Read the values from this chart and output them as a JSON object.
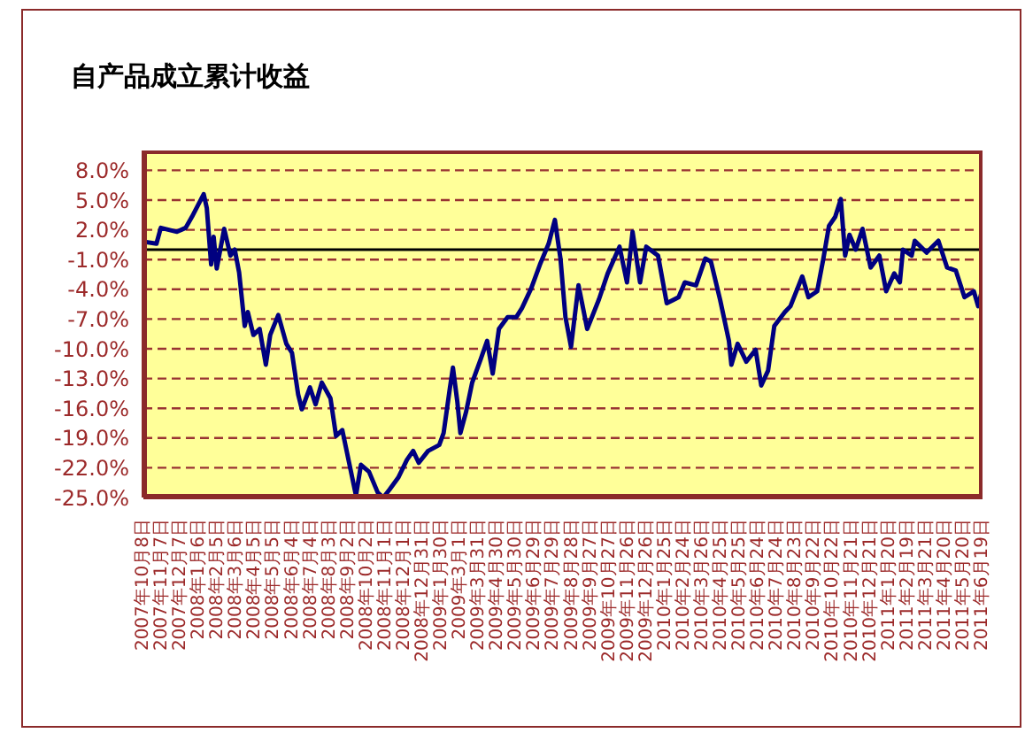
{
  "chart_data": {
    "type": "line",
    "title": "自产品成立累计收益",
    "x": [
      "2007-10-08",
      "2007-10-29",
      "2007-11-05",
      "2007-12-01",
      "2007-12-15",
      "2007-12-25",
      "2008-01-13",
      "2008-01-18",
      "2008-01-25",
      "2008-01-29",
      "2008-02-03",
      "2008-02-15",
      "2008-02-25",
      "2008-03-03",
      "2008-03-10",
      "2008-03-19",
      "2008-03-24",
      "2008-04-02",
      "2008-04-12",
      "2008-04-22",
      "2008-04-29",
      "2008-05-12",
      "2008-05-25",
      "2008-06-03",
      "2008-06-13",
      "2008-06-19",
      "2008-07-02",
      "2008-07-11",
      "2008-07-21",
      "2008-08-04",
      "2008-08-13",
      "2008-08-23",
      "2008-09-02",
      "2008-09-14",
      "2008-09-22",
      "2008-10-05",
      "2008-10-19",
      "2008-10-28",
      "2008-11-07",
      "2008-11-21",
      "2008-12-05",
      "2008-12-15",
      "2008-12-24",
      "2009-01-08",
      "2009-01-26",
      "2009-02-02",
      "2009-02-12",
      "2009-02-17",
      "2009-02-24",
      "2009-03-01",
      "2009-03-10",
      "2009-03-20",
      "2009-04-03",
      "2009-04-13",
      "2009-04-22",
      "2009-05-02",
      "2009-05-16",
      "2009-05-30",
      "2009-06-08",
      "2009-06-23",
      "2009-07-07",
      "2009-07-21",
      "2009-07-31",
      "2009-08-09",
      "2009-08-17",
      "2009-08-26",
      "2009-09-07",
      "2009-09-21",
      "2009-10-10",
      "2009-10-24",
      "2009-11-12",
      "2009-11-24",
      "2009-12-03",
      "2009-12-15",
      "2009-12-25",
      "2010-01-13",
      "2010-01-27",
      "2010-02-15",
      "2010-02-25",
      "2010-03-15",
      "2010-03-30",
      "2010-04-08",
      "2010-04-23",
      "2010-05-07",
      "2010-05-11",
      "2010-05-21",
      "2010-06-04",
      "2010-06-19",
      "2010-06-28",
      "2010-07-09",
      "2010-07-19",
      "2010-08-05",
      "2010-08-14",
      "2010-09-02",
      "2010-09-12",
      "2010-09-26",
      "2010-10-06",
      "2010-10-15",
      "2010-10-25",
      "2010-11-03",
      "2010-11-10",
      "2010-11-17",
      "2010-11-27",
      "2010-12-08",
      "2010-12-21",
      "2011-01-04",
      "2011-01-15",
      "2011-01-28",
      "2011-02-06",
      "2011-02-11",
      "2011-02-25",
      "2011-03-02",
      "2011-03-21",
      "2011-04-09",
      "2011-04-23",
      "2011-05-07",
      "2011-05-21",
      "2011-06-05",
      "2011-06-12",
      "2011-06-19"
    ],
    "series": [
      {
        "color": "#000080",
        "values": [
          0.8,
          0.6,
          2.2,
          1.8,
          2.2,
          3.3,
          5.6,
          4.2,
          -1.5,
          1.3,
          -1.9,
          2.1,
          -0.6,
          0.0,
          -2.3,
          -7.7,
          -6.3,
          -8.6,
          -8.0,
          -11.6,
          -8.6,
          -6.6,
          -9.5,
          -10.4,
          -14.6,
          -16.1,
          -13.9,
          -15.6,
          -13.4,
          -15.0,
          -18.8,
          -18.2,
          -21.2,
          -24.8,
          -21.7,
          -22.4,
          -24.5,
          -25.0,
          -24.2,
          -23.0,
          -21.2,
          -20.3,
          -21.5,
          -20.3,
          -19.7,
          -18.5,
          -14.0,
          -11.9,
          -15.3,
          -18.5,
          -16.4,
          -13.4,
          -11.0,
          -9.2,
          -12.5,
          -8.0,
          -6.8,
          -6.8,
          -5.9,
          -3.9,
          -1.5,
          0.6,
          3.0,
          -0.9,
          -6.8,
          -9.8,
          -3.6,
          -8.0,
          -5.0,
          -2.4,
          0.3,
          -3.3,
          1.8,
          -3.3,
          0.3,
          -0.6,
          -5.4,
          -4.8,
          -3.3,
          -3.6,
          -0.9,
          -1.2,
          -5.1,
          -9.2,
          -11.6,
          -9.5,
          -11.3,
          -10.1,
          -13.7,
          -12.2,
          -7.7,
          -6.3,
          -5.7,
          -2.7,
          -4.8,
          -4.2,
          -0.9,
          2.4,
          3.3,
          5.1,
          -0.6,
          1.5,
          0.0,
          2.1,
          -1.8,
          -0.6,
          -4.2,
          -2.4,
          -3.3,
          0.0,
          -0.6,
          0.9,
          -0.3,
          0.9,
          -1.8,
          -2.1,
          -4.8,
          -4.2,
          -5.7,
          -3.9
        ]
      }
    ],
    "xlim": [
      "2007-10-08",
      "2011-06-19"
    ],
    "xticks": [
      {
        "value": "2007-10-08",
        "label": "2007年10月8日"
      },
      {
        "value": "2007-11-07",
        "label": "2007年11月7日"
      },
      {
        "value": "2007-12-07",
        "label": "2007年12月7日"
      },
      {
        "value": "2008-01-06",
        "label": "2008年1月6日"
      },
      {
        "value": "2008-02-05",
        "label": "2008年2月5日"
      },
      {
        "value": "2008-03-06",
        "label": "2008年3月6日"
      },
      {
        "value": "2008-04-05",
        "label": "2008年4月5日"
      },
      {
        "value": "2008-05-05",
        "label": "2008年5月5日"
      },
      {
        "value": "2008-06-04",
        "label": "2008年6月4日"
      },
      {
        "value": "2008-07-04",
        "label": "2008年7月4日"
      },
      {
        "value": "2008-08-03",
        "label": "2008年8月3日"
      },
      {
        "value": "2008-09-02",
        "label": "2008年9月2日"
      },
      {
        "value": "2008-10-02",
        "label": "2008年10月2日"
      },
      {
        "value": "2008-11-01",
        "label": "2008年11月1日"
      },
      {
        "value": "2008-12-01",
        "label": "2008年12月1日"
      },
      {
        "value": "2008-12-31",
        "label": "2008年12月31日"
      },
      {
        "value": "2009-01-30",
        "label": "2009年1月30日"
      },
      {
        "value": "2009-03-01",
        "label": "2009年3月1日"
      },
      {
        "value": "2009-03-31",
        "label": "2009年3月31日"
      },
      {
        "value": "2009-04-30",
        "label": "2009年4月30日"
      },
      {
        "value": "2009-05-30",
        "label": "2009年5月30日"
      },
      {
        "value": "2009-06-29",
        "label": "2009年6月29日"
      },
      {
        "value": "2009-07-29",
        "label": "2009年7月29日"
      },
      {
        "value": "2009-08-28",
        "label": "2009年8月28日"
      },
      {
        "value": "2009-09-27",
        "label": "2009年9月27日"
      },
      {
        "value": "2009-10-27",
        "label": "2009年10月27日"
      },
      {
        "value": "2009-11-26",
        "label": "2009年11月26日"
      },
      {
        "value": "2009-12-26",
        "label": "2009年12月26日"
      },
      {
        "value": "2010-01-25",
        "label": "2010年1月25日"
      },
      {
        "value": "2010-02-24",
        "label": "2010年2月24日"
      },
      {
        "value": "2010-03-26",
        "label": "2010年3月26日"
      },
      {
        "value": "2010-04-25",
        "label": "2010年4月25日"
      },
      {
        "value": "2010-05-25",
        "label": "2010年5月25日"
      },
      {
        "value": "2010-06-24",
        "label": "2010年6月24日"
      },
      {
        "value": "2010-07-24",
        "label": "2010年7月24日"
      },
      {
        "value": "2010-08-23",
        "label": "2010年8月23日"
      },
      {
        "value": "2010-09-22",
        "label": "2010年9月22日"
      },
      {
        "value": "2010-10-22",
        "label": "2010年10月22日"
      },
      {
        "value": "2010-11-21",
        "label": "2010年11月21日"
      },
      {
        "value": "2010-12-21",
        "label": "2010年12月21日"
      },
      {
        "value": "2011-01-20",
        "label": "2011年1月20日"
      },
      {
        "value": "2011-02-19",
        "label": "2011年2月19日"
      },
      {
        "value": "2011-03-21",
        "label": "2011年3月21日"
      },
      {
        "value": "2011-04-20",
        "label": "2011年4月20日"
      },
      {
        "value": "2011-05-20",
        "label": "2011年5月20日"
      },
      {
        "value": "2011-06-19",
        "label": "2011年6月19日"
      }
    ],
    "ylim": [
      -25,
      10
    ],
    "yticks": [
      {
        "value": 8,
        "label": "8.0%"
      },
      {
        "value": 5,
        "label": "5.0%"
      },
      {
        "value": 2,
        "label": "2.0%"
      },
      {
        "value": -1,
        "label": "-1.0%"
      },
      {
        "value": -4,
        "label": "-4.0%"
      },
      {
        "value": -7,
        "label": "-7.0%"
      },
      {
        "value": -10,
        "label": "-10.0%"
      },
      {
        "value": -13,
        "label": "-13.0%"
      },
      {
        "value": -16,
        "label": "-16.0%"
      },
      {
        "value": -19,
        "label": "-19.0%"
      },
      {
        "value": -22,
        "label": "-22.0%"
      },
      {
        "value": -25,
        "label": "-25.0%"
      }
    ],
    "ref_lines": [
      {
        "axis": "y",
        "value": 0,
        "color": "#000000"
      }
    ],
    "grid": "y",
    "marker": "none",
    "line_style": "solid"
  }
}
